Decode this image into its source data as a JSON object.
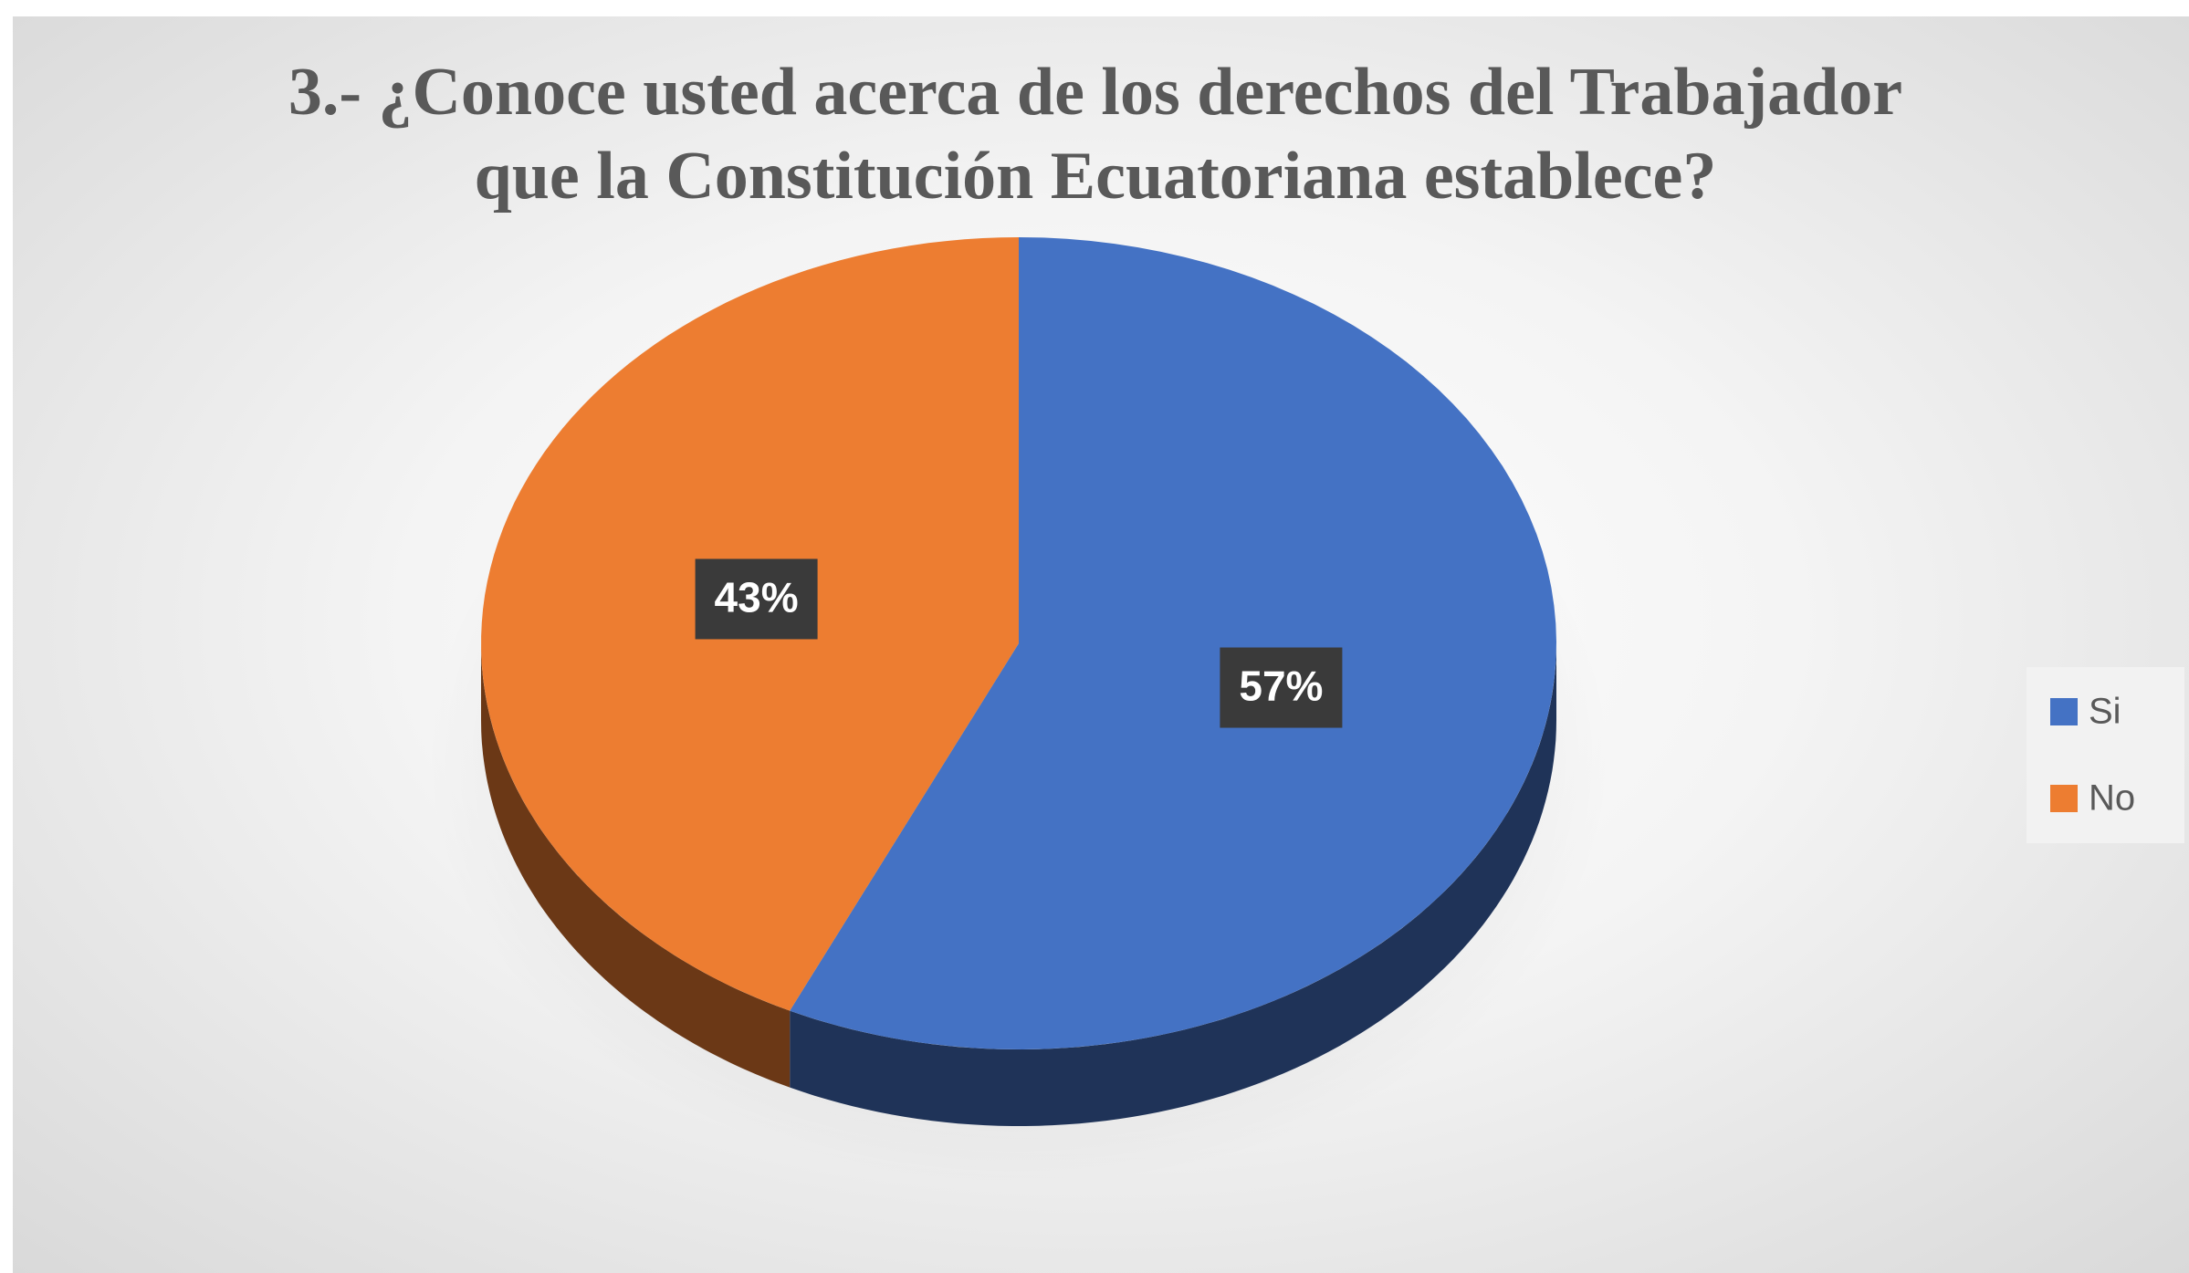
{
  "chart_data": {
    "type": "pie",
    "title": "3.- ¿Conoce usted acerca de los derechos del Trabajador que la Constitución Ecuatoriana establece?",
    "categories": [
      "Si",
      "No"
    ],
    "values": [
      57,
      43
    ],
    "value_labels": [
      "57%",
      "43%"
    ],
    "colors": [
      "#4472c4",
      "#ed7d31"
    ],
    "legend": "right"
  }
}
